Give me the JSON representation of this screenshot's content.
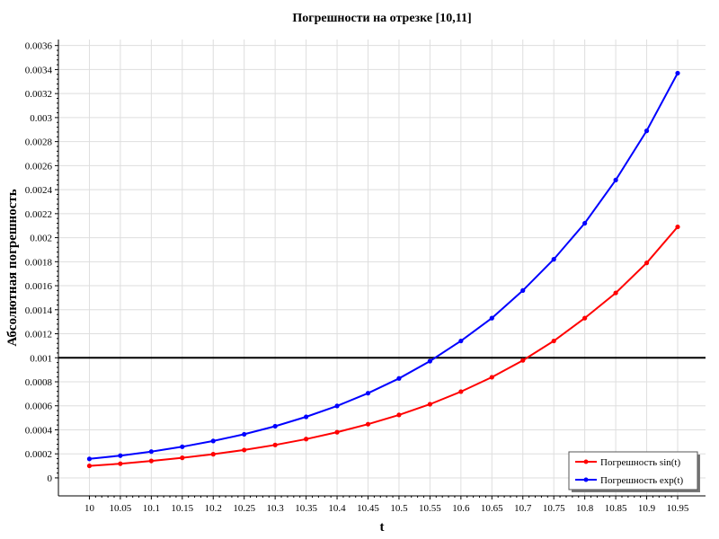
{
  "chart_data": {
    "type": "line",
    "title": "Погрешности на отрезке [10,11]",
    "xlabel": "t",
    "ylabel": "Абсолютная погрешность",
    "x": [
      10,
      10.05,
      10.1,
      10.15,
      10.2,
      10.25,
      10.3,
      10.35,
      10.4,
      10.45,
      10.5,
      10.55,
      10.6,
      10.65,
      10.7,
      10.75,
      10.8,
      10.85,
      10.9,
      10.95
    ],
    "x_tick_labels": [
      "10",
      "10.05",
      "10.1",
      "10.15",
      "10.2",
      "10.25",
      "10.3",
      "10.35",
      "10.4",
      "10.45",
      "10.5",
      "10.55",
      "10.6",
      "10.65",
      "10.7",
      "10.75",
      "10.8",
      "10.85",
      "10.9",
      "10.95"
    ],
    "y_ticks": [
      0,
      0.0002,
      0.0004,
      0.0006,
      0.0008,
      0.001,
      0.0012,
      0.0014,
      0.0016,
      0.0018,
      0.002,
      0.0022,
      0.0024,
      0.0026,
      0.0028,
      0.003,
      0.0032,
      0.0034,
      0.0036
    ],
    "y_tick_labels": [
      "0",
      "0.0002",
      "0.0004",
      "0.0006",
      "0.0008",
      "0.001",
      "0.0012",
      "0.0014",
      "0.0016",
      "0.0018",
      "0.002",
      "0.0022",
      "0.0024",
      "0.0026",
      "0.0028",
      "0.003",
      "0.0032",
      "0.0034",
      "0.0036"
    ],
    "xlim": [
      9.95,
      10.995
    ],
    "ylim": [
      -0.00015,
      0.00365
    ],
    "grid": true,
    "legend_position": "bottom-right",
    "reference_line": {
      "y": 0.001,
      "color": "#000000"
    },
    "series": [
      {
        "name": "Погрешность sin(t)",
        "color": "#ff0000",
        "values": [
          0.0001,
          0.000118,
          0.000141,
          0.000167,
          0.000197,
          0.000232,
          0.000274,
          0.000323,
          0.00038,
          0.000447,
          0.000524,
          0.000613,
          0.000718,
          0.000838,
          0.000978,
          0.00114,
          0.00133,
          0.00154,
          0.00179,
          0.00209
        ]
      },
      {
        "name": "Погрешность exp(t)",
        "color": "#0000ff",
        "values": [
          0.000158,
          0.000185,
          0.000219,
          0.000259,
          0.000307,
          0.000363,
          0.00043,
          0.000508,
          0.000599,
          0.000705,
          0.000828,
          0.000972,
          0.00114,
          0.00133,
          0.00156,
          0.00182,
          0.00212,
          0.00248,
          0.00289,
          0.00337
        ]
      }
    ]
  }
}
